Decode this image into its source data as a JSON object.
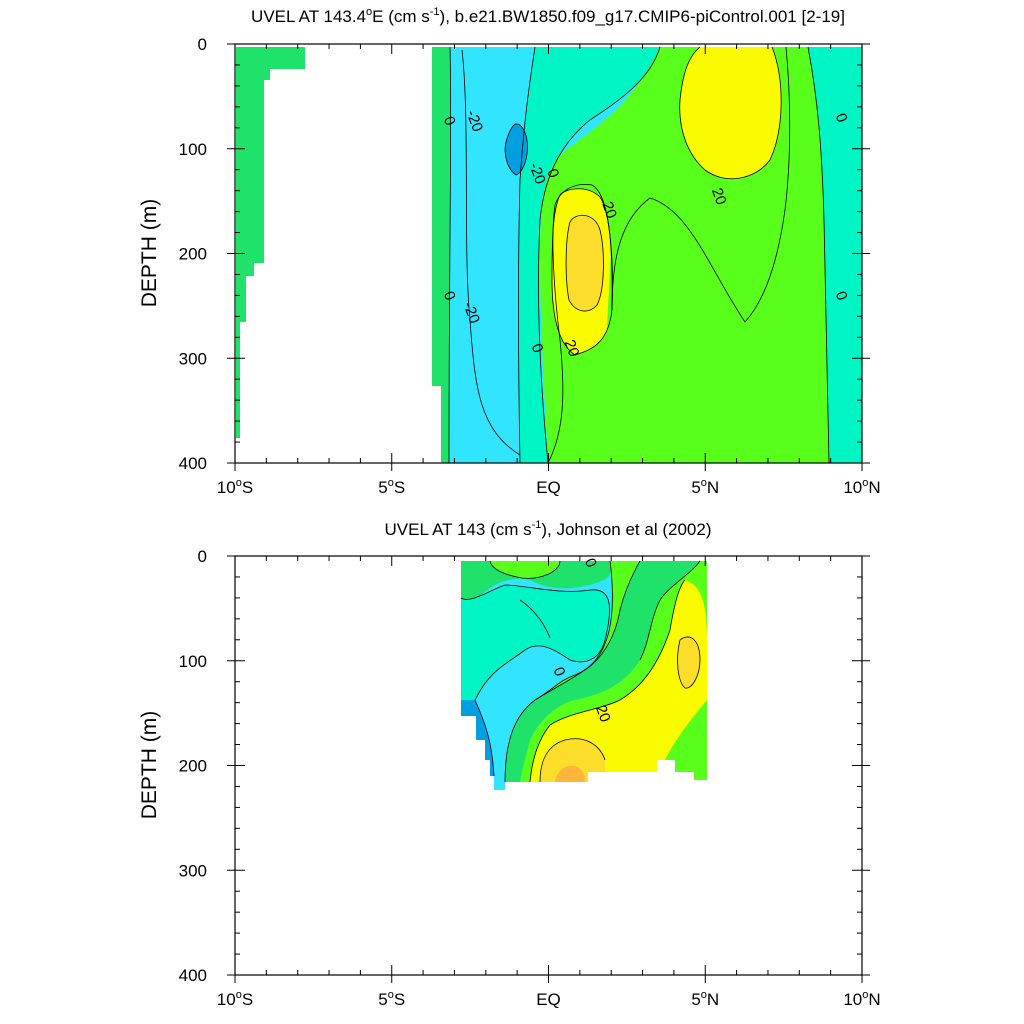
{
  "chart_data": [
    {
      "type": "contour",
      "title_prefix": "UVEL AT 143.4",
      "title_deg": "o",
      "title_mid": "E (cm s",
      "title_exp": "-1",
      "title_suffix": "), b.e21.BW1850.f09_g17.CMIP6-piControl.001 [2-19]",
      "ylabel": "DEPTH (m)",
      "xlim": [
        -10,
        10
      ],
      "ylim": [
        400,
        0
      ],
      "x_ticks": [
        {
          "value": -10,
          "num": "10",
          "hem": "S"
        },
        {
          "value": -5,
          "num": "5",
          "hem": "S"
        },
        {
          "value": 0,
          "num": "EQ",
          "hem": ""
        },
        {
          "value": 5,
          "num": "5",
          "hem": "N"
        },
        {
          "value": 10,
          "num": "10",
          "hem": "N"
        }
      ],
      "y_ticks": [
        "0",
        "100",
        "200",
        "300",
        "400"
      ],
      "contour_labels": [
        {
          "text": "0",
          "x": -3.3,
          "y": 75
        },
        {
          "text": "-20",
          "x": -2.5,
          "y": 75
        },
        {
          "text": "-20",
          "x": -0.5,
          "y": 125
        },
        {
          "text": "0",
          "x": 0.0,
          "y": 125
        },
        {
          "text": "20",
          "x": 1.8,
          "y": 160
        },
        {
          "text": "20",
          "x": 5.3,
          "y": 147
        },
        {
          "text": "0",
          "x": 9.2,
          "y": 72
        },
        {
          "text": "0",
          "x": -3.3,
          "y": 242
        },
        {
          "text": "-20",
          "x": -2.6,
          "y": 258
        },
        {
          "text": "0",
          "x": -0.5,
          "y": 292
        },
        {
          "text": "20",
          "x": 0.6,
          "y": 292
        },
        {
          "text": "0",
          "x": 9.2,
          "y": 242
        }
      ]
    },
    {
      "type": "contour",
      "title_prefix": "UVEL AT 143 (cm s",
      "title_exp": "-1",
      "title_suffix": "), Johnson et al (2002)",
      "ylabel": "DEPTH (m)",
      "xlim": [
        -10,
        10
      ],
      "ylim": [
        400,
        0
      ],
      "x_ticks": [
        {
          "value": -10,
          "num": "10",
          "hem": "S"
        },
        {
          "value": -5,
          "num": "5",
          "hem": "S"
        },
        {
          "value": 0,
          "num": "EQ",
          "hem": ""
        },
        {
          "value": 5,
          "num": "5",
          "hem": "N"
        },
        {
          "value": 10,
          "num": "10",
          "hem": "N"
        }
      ],
      "y_ticks": [
        "0",
        "100",
        "200",
        "300",
        "400"
      ],
      "contour_labels": [
        {
          "text": "0",
          "x": 1.2,
          "y": 8
        },
        {
          "text": "0",
          "x": 0.2,
          "y": 112
        },
        {
          "text": "20",
          "x": 1.6,
          "y": 152
        }
      ]
    }
  ],
  "colors": {
    "lt_minus_20": "#009fdf",
    "minus_20_to_minus_10": "#31e5ff",
    "minus_10_to_0": "#00f5c4",
    "zero_to_10": "#57ff1a",
    "ten_to_20": "#1fe26b",
    "twenty_to_30": "#fbfb00",
    "thirty_to_40": "#fbdd2a",
    "gt_40": "#ffb43a"
  }
}
